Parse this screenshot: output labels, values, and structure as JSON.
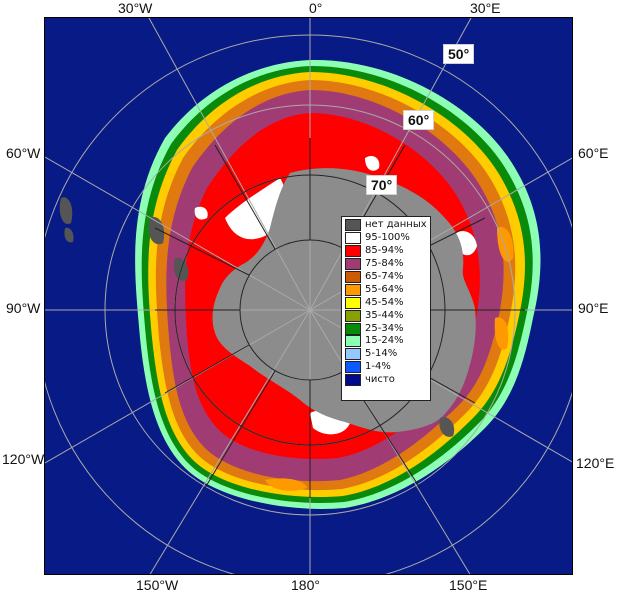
{
  "map": {
    "projection": "south polar stereographic",
    "longitude_labels": {
      "top_30w": "30°W",
      "top_0": "0°",
      "top_30e": "30°E",
      "left_60w": "60°W",
      "left_90w": "90°W",
      "left_120w": "120°W",
      "right_60e": "60°E",
      "right_90e": "90°E",
      "right_120e": "120°E",
      "bottom_150w": "150°W",
      "bottom_180": "180°",
      "bottom_150e": "150°E"
    },
    "latitude_labels": {
      "lat_50": "50°",
      "lat_60": "60°",
      "lat_70": "70°"
    }
  },
  "legend": {
    "items": [
      {
        "label": "нет данных",
        "color": "#555555"
      },
      {
        "label": "95-100%",
        "color": "#ffffff"
      },
      {
        "label": "85-94%",
        "color": "#ff0000"
      },
      {
        "label": "75-84%",
        "color": "#a03c73"
      },
      {
        "label": "65-74%",
        "color": "#cc5a00"
      },
      {
        "label": "55-64%",
        "color": "#ff9900"
      },
      {
        "label": "45-54%",
        "color": "#ffff00"
      },
      {
        "label": "35-44%",
        "color": "#8aa000"
      },
      {
        "label": "25-34%",
        "color": "#0a8a0a"
      },
      {
        "label": "15-24%",
        "color": "#8cffb4"
      },
      {
        "label": "5-14%",
        "color": "#96c8ff"
      },
      {
        "label": "1-4%",
        "color": "#0a5aff"
      },
      {
        "label": "чисто",
        "color": "#000a8c"
      }
    ]
  },
  "colors": {
    "ocean": "#081a86",
    "land_ice_sheet": "#8c8c8c",
    "no_data": "#555555",
    "graticule": "#aaaaaa"
  }
}
